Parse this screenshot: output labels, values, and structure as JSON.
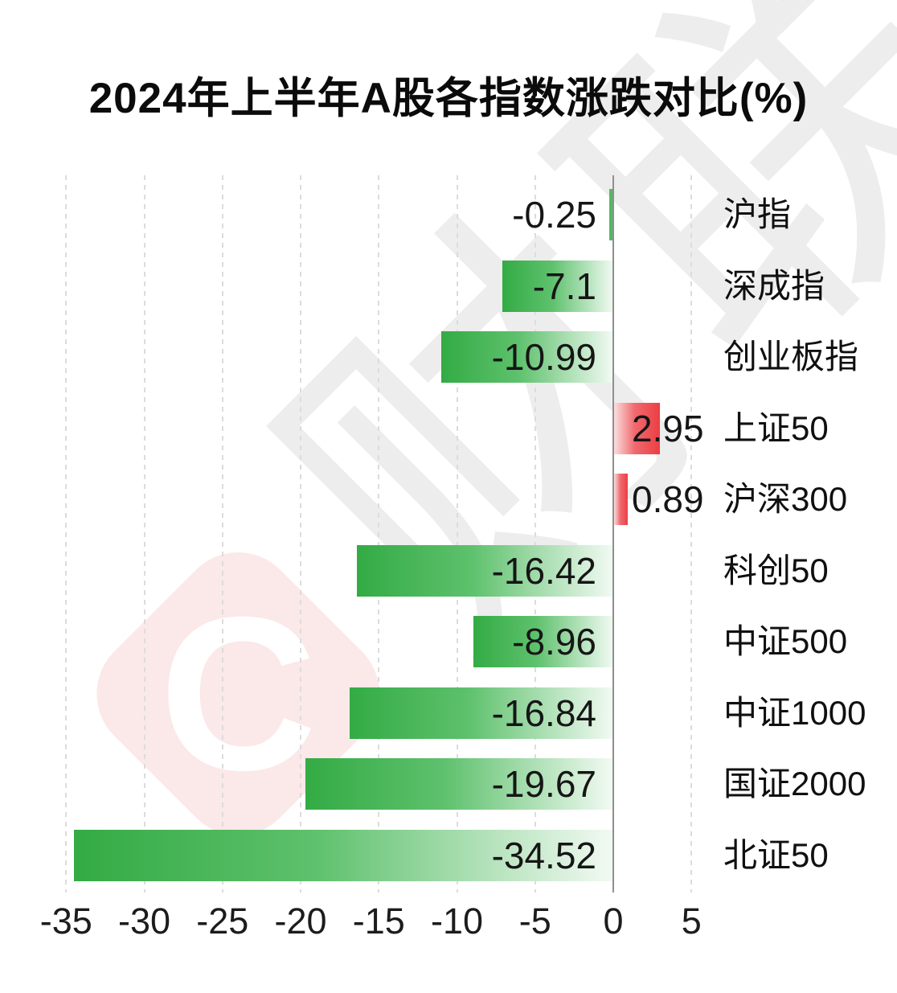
{
  "title": "2024年上半年A股各指数涨跌对比(%)",
  "watermark": {
    "logo_letter": "C",
    "text": "财联社",
    "pink": "#fbe8e8",
    "gray": "#ededed"
  },
  "chart_data": {
    "type": "bar",
    "orientation": "horizontal",
    "title": "2024年上半年A股各指数涨跌对比(%)",
    "categories": [
      "沪指",
      "深成指",
      "创业板指",
      "上证50",
      "沪深300",
      "科创50",
      "中证500",
      "中证1000",
      "国证2000",
      "北证50"
    ],
    "values": [
      -0.25,
      -7.1,
      -10.99,
      2.95,
      0.89,
      -16.42,
      -8.96,
      -16.84,
      -19.67,
      -34.52
    ],
    "value_labels": [
      "-0.25",
      "-7.1",
      "-10.99",
      "2.95",
      "0.89",
      "-16.42",
      "-8.96",
      "-16.84",
      "-19.67",
      "-34.52"
    ],
    "x_ticks": [
      -35,
      -30,
      -25,
      -20,
      -15,
      -10,
      -5,
      0,
      5
    ],
    "x_tick_labels": [
      "-35",
      "-30",
      "-25",
      "-20",
      "-15",
      "-10",
      "-5",
      "0",
      "5"
    ],
    "xlim": [
      -37,
      8
    ],
    "xlabel": "",
    "ylabel": "",
    "grid": "vertical-dashed",
    "legend": false,
    "zero_axis": true,
    "colors": {
      "negative": "#33ab44",
      "negative_mid": "#5ec16d",
      "negative_light": "#f2faf3",
      "negative_small": "#52ba61",
      "positive": "#ec3e43",
      "positive_mid": "#ef6a6f",
      "positive_light": "#fbdedf",
      "axis": "#8f8f8f",
      "grid": "#dcdcdc",
      "text": "#161616"
    }
  }
}
